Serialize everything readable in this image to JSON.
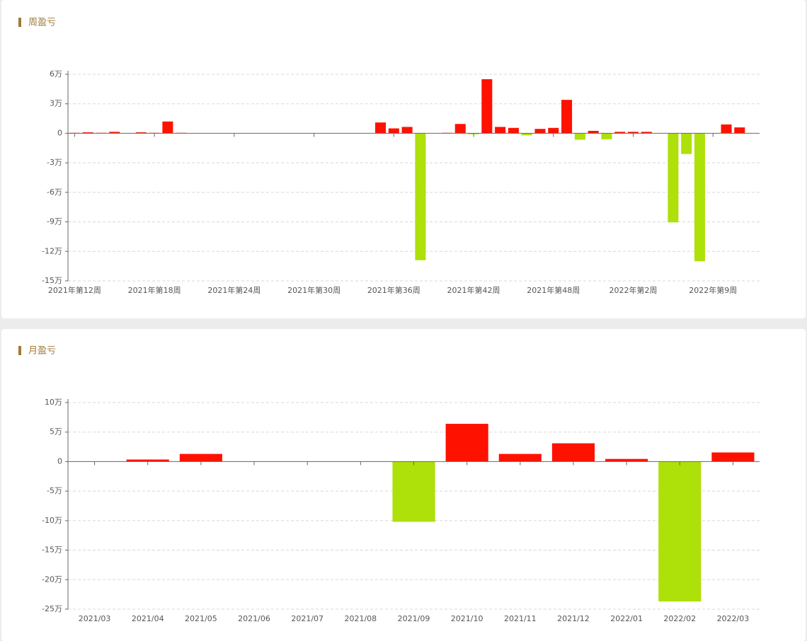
{
  "chart_data": [
    {
      "type": "bar",
      "title": "周盈亏",
      "categories": [
        "2021年第12周",
        null,
        null,
        null,
        null,
        null,
        "2021年第18周",
        null,
        null,
        null,
        null,
        null,
        "2021年第24周",
        null,
        null,
        null,
        null,
        null,
        "2021年第30周",
        null,
        null,
        null,
        null,
        null,
        "2021年第36周",
        null,
        null,
        null,
        null,
        null,
        "2021年第42周",
        null,
        null,
        null,
        null,
        null,
        "2021年第48周",
        null,
        null,
        null,
        null,
        null,
        "2022年第2周",
        null,
        null,
        null,
        null,
        null,
        "2022年第9周",
        null,
        null,
        null
      ],
      "values": [
        0.05,
        0.1,
        0.05,
        0.15,
        0,
        0.1,
        0.05,
        1.2,
        0.05,
        0,
        0,
        0,
        0,
        0,
        0,
        0,
        0,
        0,
        0,
        0,
        0,
        0,
        0,
        1.1,
        0.5,
        0.65,
        -12.9,
        0,
        0.05,
        0.95,
        -0.1,
        5.5,
        0.65,
        0.55,
        -0.2,
        0.45,
        0.55,
        3.4,
        -0.65,
        0.25,
        -0.6,
        0.15,
        0.15,
        0.15,
        0,
        -9.05,
        -2.1,
        -13,
        0,
        0.9,
        0.6,
        0
      ],
      "positive_color": "#ff1100",
      "negative_color": "#aee00a",
      "ylim": [
        -15,
        6
      ],
      "yticks": [
        {
          "value": -15,
          "label": "-15万"
        },
        {
          "value": -12,
          "label": "-12万"
        },
        {
          "value": -9,
          "label": "-9万"
        },
        {
          "value": -6,
          "label": "-6万"
        },
        {
          "value": -3,
          "label": "-3万"
        },
        0,
        {
          "value": 3,
          "label": "3万"
        },
        {
          "value": 6,
          "label": "6万"
        }
      ],
      "grid": true
    },
    {
      "type": "bar",
      "title": "月盈亏",
      "categories": [
        "2021/03",
        "2021/04",
        "2021/05",
        "2021/06",
        "2021/07",
        "2021/08",
        "2021/09",
        "2021/10",
        "2021/11",
        "2021/12",
        "2022/01",
        "2022/02",
        "2022/03"
      ],
      "values": [
        0.05,
        0.35,
        1.3,
        0,
        0,
        0,
        -10.2,
        6.4,
        1.3,
        3.1,
        0.45,
        -23.7,
        1.55
      ],
      "positive_color": "#ff1100",
      "negative_color": "#aee00a",
      "ylim": [
        -25,
        10
      ],
      "yticks": [
        {
          "value": -25,
          "label": "-25万"
        },
        {
          "value": -20,
          "label": "-20万"
        },
        {
          "value": -15,
          "label": "-15万"
        },
        {
          "value": -10,
          "label": "-10万"
        },
        {
          "value": -5,
          "label": "-5万"
        },
        0,
        {
          "value": 5,
          "label": "5万"
        },
        {
          "value": 10,
          "label": "10万"
        }
      ],
      "grid": true
    }
  ]
}
